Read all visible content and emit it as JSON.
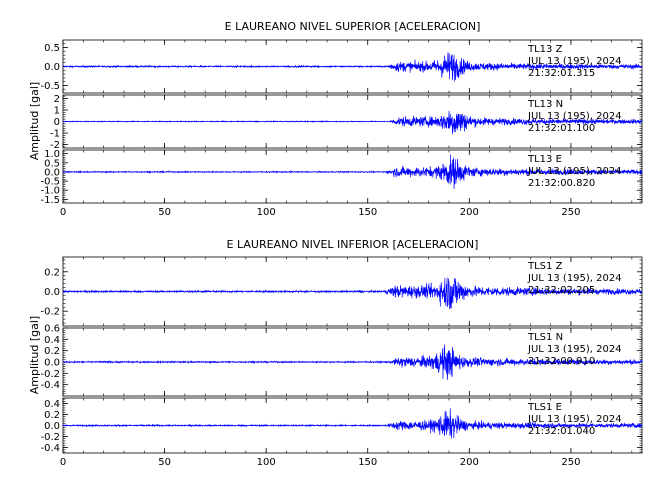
{
  "chart_data": [
    {
      "type": "line",
      "title": "E LAUREANO NIVEL SUPERIOR [ACELERACION]",
      "ylabel": "Amplitud [gal]",
      "xlim": [
        0,
        285
      ],
      "x_ticks": [
        0,
        50,
        100,
        150,
        200,
        250
      ],
      "trace_color": "#0000ff",
      "panels": [
        {
          "station": "TL13",
          "component": "Z",
          "date": "JUL 13 (195), 2024",
          "time": "21:32:01.315",
          "ylim": [
            -0.7,
            0.7
          ],
          "y_ticks": [
            -0.5,
            0.0,
            0.5
          ],
          "onset_s": 158,
          "peak_time_s": 191,
          "pre_event_noise": 0.03,
          "peak_amplitude": 0.62
        },
        {
          "station": "TL13",
          "component": "N",
          "date": "JUL 13 (195), 2024",
          "time": "21:32:01.100",
          "ylim": [
            -2.3,
            2.3
          ],
          "y_ticks": [
            -2,
            -1,
            0,
            1,
            2
          ],
          "onset_s": 160,
          "peak_time_s": 193,
          "pre_event_noise": 0.06,
          "peak_amplitude": 2.0
        },
        {
          "station": "TL13",
          "component": "E",
          "date": "JUL 13 (195), 2024",
          "time": "21:32:00.820",
          "ylim": [
            -1.7,
            1.2
          ],
          "y_ticks": [
            -1.5,
            -1.0,
            -0.5,
            0.0,
            0.5,
            1.0
          ],
          "onset_s": 158,
          "peak_time_s": 192,
          "pre_event_noise": 0.05,
          "peak_amplitude": 1.3
        }
      ]
    },
    {
      "type": "line",
      "title": "E LAUREANO NIVEL INFERIOR [ACELERACION]",
      "ylabel": "Amplitud [gal]",
      "xlim": [
        0,
        285
      ],
      "x_ticks": [
        0,
        50,
        100,
        150,
        200,
        250
      ],
      "trace_color": "#0000ff",
      "panels": [
        {
          "station": "TLS1",
          "component": "Z",
          "date": "JUL 13 (195), 2024",
          "time": "21:32:02.205",
          "ylim": [
            -0.35,
            0.35
          ],
          "y_ticks": [
            -0.2,
            0.0,
            0.2
          ],
          "onset_s": 157,
          "peak_time_s": 191,
          "pre_event_noise": 0.015,
          "peak_amplitude": 0.3
        },
        {
          "station": "TLS1",
          "component": "N",
          "date": "JUL 13 (195), 2024",
          "time": "21:32:00.910",
          "ylim": [
            -0.6,
            0.6
          ],
          "y_ticks": [
            -0.4,
            -0.2,
            0.0,
            0.2,
            0.4,
            0.6
          ],
          "onset_s": 160,
          "peak_time_s": 189,
          "pre_event_noise": 0.02,
          "peak_amplitude": 0.45
        },
        {
          "station": "TLS1",
          "component": "E",
          "date": "JUL 13 (195), 2024",
          "time": "21:32:01.040",
          "ylim": [
            -0.5,
            0.5
          ],
          "y_ticks": [
            -0.4,
            -0.2,
            0.0,
            0.2,
            0.4
          ],
          "onset_s": 158,
          "peak_time_s": 190,
          "pre_event_noise": 0.02,
          "peak_amplitude": 0.4
        }
      ]
    }
  ]
}
